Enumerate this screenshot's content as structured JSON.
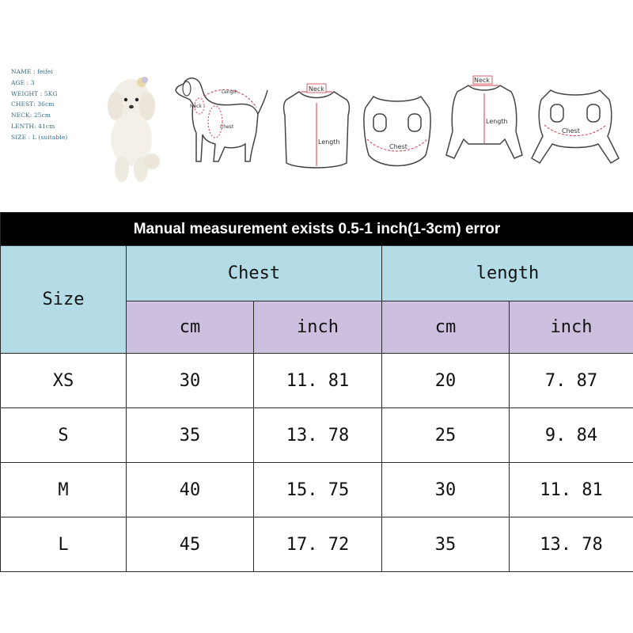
{
  "dog_info": {
    "name": "NAME : feifei",
    "age": "AGE : 3",
    "weight": "WEIGHT : 5KG",
    "chest": "CHEST: 36cm",
    "neck": "NECK: 25cm",
    "length": "LENTH: 41cm",
    "size": "SIZE : L (suitable)"
  },
  "diagram_labels": {
    "dog_length": "Length",
    "dog_neck": "Neck",
    "dog_chest": "Chest",
    "shirt_neck": "Neck",
    "shirt_length": "Length",
    "shirt_chest": "Chest",
    "jumpsuit_neck": "Neck",
    "jumpsuit_length": "Length",
    "jumpsuit_chest": "Chest"
  },
  "table": {
    "title": "Manual measurement exists 0.5-1 inch(1-3cm) error",
    "size_header": "Size",
    "chest_header": "Chest",
    "length_header": "length",
    "unit_cm": "cm",
    "unit_inch": "inch",
    "rows": [
      {
        "size": "XS",
        "chest_cm": "30",
        "chest_inch": "11. 81",
        "length_cm": "20",
        "length_inch": "7. 87"
      },
      {
        "size": "S",
        "chest_cm": "35",
        "chest_inch": "13. 78",
        "length_cm": "25",
        "length_inch": "9. 84"
      },
      {
        "size": "M",
        "chest_cm": "40",
        "chest_inch": "15. 75",
        "length_cm": "30",
        "length_inch": "11. 81"
      },
      {
        "size": "L",
        "chest_cm": "45",
        "chest_inch": "17. 72",
        "length_cm": "35",
        "length_inch": "13. 78"
      }
    ]
  },
  "colors": {
    "header_blue": "#b3dce6",
    "header_violet": "#cdc0df",
    "title_bg": "#000000",
    "measure_red": "#d23a4a",
    "info_text": "#2f6b86"
  }
}
